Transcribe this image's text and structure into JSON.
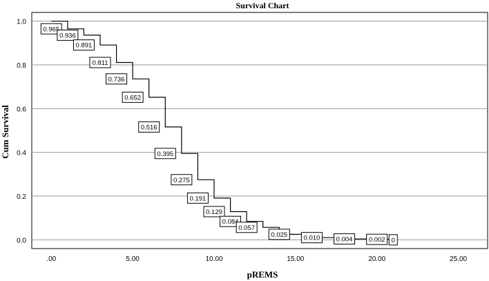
{
  "chart_data": {
    "type": "line",
    "title": "Survival Chart",
    "xlabel": "pREMS",
    "ylabel": "Cum Survival",
    "xlim": [
      -1.2,
      26.8
    ],
    "ylim": [
      -0.04,
      1.04
    ],
    "x_ticks": [
      0,
      5,
      10,
      15,
      20,
      25
    ],
    "x_tick_labels": [
      ".00",
      "5.00",
      "10.00",
      "15.00",
      "20.00",
      "25.00"
    ],
    "y_ticks": [
      0,
      0.2,
      0.4,
      0.6,
      0.8,
      1.0
    ],
    "y_tick_labels": [
      "0.0",
      "0.2",
      "0.4",
      "0.6",
      "0.8",
      "1.0"
    ],
    "grid": "horizontal",
    "series": [
      {
        "x": [
          0,
          1,
          2,
          3,
          4,
          5,
          6,
          7,
          8,
          9,
          10,
          11,
          12,
          13,
          14,
          16,
          18,
          20,
          21
        ],
        "y": [
          1.0,
          0.965,
          0.936,
          0.891,
          0.811,
          0.736,
          0.652,
          0.516,
          0.395,
          0.275,
          0.191,
          0.129,
          0.084,
          0.057,
          0.025,
          0.01,
          0.004,
          0.002,
          0.0
        ]
      }
    ],
    "annotations": [
      {
        "x": 0.0,
        "y": 0.965,
        "text": "0.965"
      },
      {
        "x": 1.0,
        "y": 0.936,
        "text": "0.936"
      },
      {
        "x": 2.0,
        "y": 0.891,
        "text": "0.891"
      },
      {
        "x": 3.0,
        "y": 0.811,
        "text": "0.811"
      },
      {
        "x": 4.0,
        "y": 0.736,
        "text": "0.736"
      },
      {
        "x": 5.0,
        "y": 0.652,
        "text": "0.652"
      },
      {
        "x": 6.0,
        "y": 0.516,
        "text": "0.516"
      },
      {
        "x": 7.0,
        "y": 0.395,
        "text": "0.395"
      },
      {
        "x": 8.0,
        "y": 0.275,
        "text": "0.275"
      },
      {
        "x": 9.0,
        "y": 0.191,
        "text": "0.191"
      },
      {
        "x": 10.0,
        "y": 0.129,
        "text": "0.129"
      },
      {
        "x": 11.0,
        "y": 0.084,
        "text": "0.084"
      },
      {
        "x": 12.0,
        "y": 0.057,
        "text": "0.057"
      },
      {
        "x": 14.0,
        "y": 0.025,
        "text": "0.025"
      },
      {
        "x": 16.0,
        "y": 0.01,
        "text": "0.010"
      },
      {
        "x": 18.0,
        "y": 0.004,
        "text": "0.004"
      },
      {
        "x": 20.0,
        "y": 0.002,
        "text": "0.002"
      },
      {
        "x": 21.0,
        "y": 0.0,
        "text": "0"
      }
    ]
  }
}
